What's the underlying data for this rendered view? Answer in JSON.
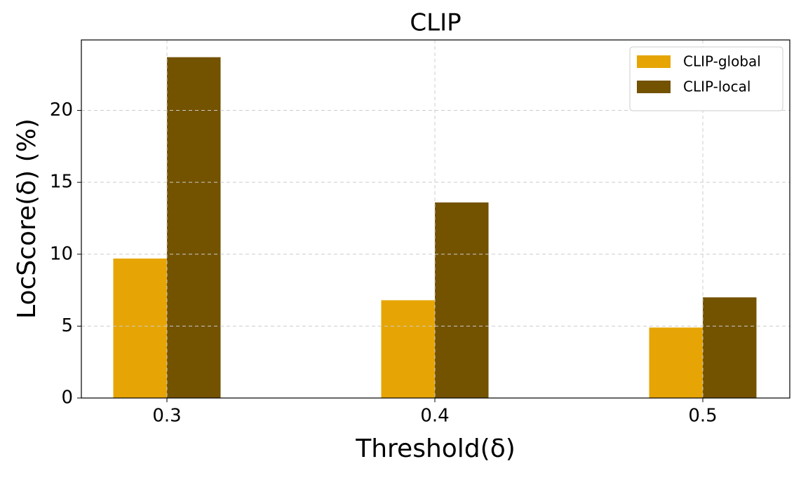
{
  "chart_data": {
    "type": "bar",
    "title": "CLIP",
    "x_label": "Threshold(δ)",
    "y_label": "LocScore(δ) (%)",
    "categories": [
      "0.3",
      "0.4",
      "0.5"
    ],
    "series": [
      {
        "name": "CLIP-global",
        "color": "#e6a504",
        "values": [
          9.7,
          6.8,
          4.9
        ]
      },
      {
        "name": "CLIP-local",
        "color": "#735200",
        "values": [
          23.7,
          13.6,
          7.0
        ]
      }
    ],
    "ylim": [
      0,
      24.9
    ],
    "yticks": [
      0,
      5,
      10,
      15,
      20
    ],
    "grid": true,
    "legend": "upper right"
  }
}
